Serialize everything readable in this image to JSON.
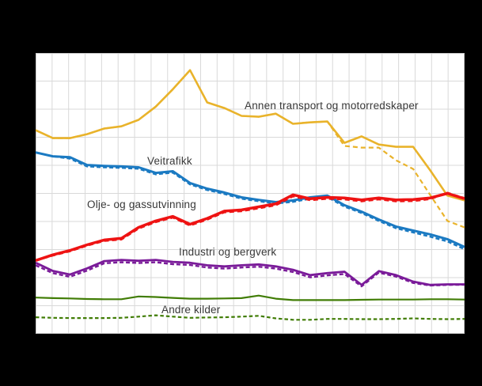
{
  "page": {
    "background": "#000000"
  },
  "plot": {
    "background": "#ffffff",
    "grid_color": "#d9d9d9",
    "border_color": "#c9c9c9",
    "v_gridline_count": 27,
    "h_gridline_count": 11
  },
  "labels": {
    "annen_transport": {
      "text": "Annen transport og motorredskaper"
    },
    "veitrafikk": {
      "text": "Veitrafikk"
    },
    "olje_gass": {
      "text": "Olje- og gassutvinning"
    },
    "industri": {
      "text": "Industri og bergverk"
    },
    "andre_kilder": {
      "text": "Andre kilder"
    }
  },
  "chart_data": {
    "type": "line",
    "title": "",
    "xlabel": "",
    "ylabel": "",
    "x_axis": {
      "n_points": 26,
      "tick_labels_visible": false
    },
    "y_axis": {
      "ylim": [
        0,
        100
      ],
      "gridline_step": 10,
      "tick_labels_visible": false
    },
    "grid": true,
    "legend_position": "none (labels drawn inside plot)",
    "note": "Axis tick labels are not legible in the source image (black text on black background); y-values are estimated on a 0-100 scale where each horizontal gridline = 10 units. Each source has a solid and a dashed variant.",
    "series": [
      {
        "name": "Annen transport og motorredskaper",
        "variant": "solid",
        "color": "#e9b32b",
        "width": 2.6,
        "dash": null,
        "values": [
          72.5,
          69.7,
          69.7,
          71.1,
          73.1,
          73.9,
          76.2,
          80.9,
          87.1,
          93.9,
          82.4,
          80.4,
          77.6,
          77.3,
          78.4,
          74.8,
          75.3,
          75.6,
          68.0,
          70.3,
          67.4,
          66.6,
          66.6,
          58.2,
          49.2,
          47.5
        ]
      },
      {
        "name": "Annen transport og motorredskaper",
        "variant": "dashed",
        "color": "#e9b32b",
        "width": 2.2,
        "dash": "6 4",
        "values": [
          72.5,
          69.7,
          69.7,
          71.1,
          73.1,
          73.9,
          76.2,
          80.9,
          87.1,
          93.9,
          82.4,
          80.4,
          77.6,
          77.3,
          78.4,
          74.8,
          75.3,
          75.6,
          66.9,
          66.3,
          66.3,
          61.8,
          58.7,
          49.4,
          40.2,
          37.9
        ]
      },
      {
        "name": "Andre kilder",
        "variant": "solid",
        "color": "#417d06",
        "width": 2.2,
        "dash": null,
        "values": [
          12.9,
          12.7,
          12.6,
          12.4,
          12.3,
          12.3,
          13.3,
          13.1,
          12.8,
          12.5,
          12.5,
          12.6,
          12.7,
          13.6,
          12.5,
          12.0,
          12.0,
          12.0,
          12.0,
          12.1,
          12.2,
          12.2,
          12.2,
          12.3,
          12.3,
          12.2
        ]
      },
      {
        "name": "Andre kilder",
        "variant": "dashed",
        "color": "#417d06",
        "width": 2.2,
        "dash": "4.5 3",
        "values": [
          5.9,
          5.7,
          5.6,
          5.6,
          5.6,
          5.7,
          6.1,
          6.6,
          6.1,
          5.7,
          5.8,
          5.9,
          6.1,
          6.4,
          5.5,
          5.0,
          5.0,
          5.3,
          5.3,
          5.2,
          5.2,
          5.3,
          5.5,
          5.3,
          5.2,
          5.3
        ]
      },
      {
        "name": "Industri og bergverk",
        "variant": "solid",
        "color": "#7a1b99",
        "width": 2.8,
        "dash": null,
        "values": [
          25.3,
          22.4,
          21.1,
          23.3,
          25.9,
          26.3,
          26.0,
          26.3,
          25.6,
          25.3,
          24.4,
          24.0,
          24.4,
          24.7,
          24.0,
          22.8,
          20.9,
          21.6,
          22.1,
          17.4,
          22.3,
          20.9,
          18.6,
          17.4,
          17.6,
          17.6
        ]
      },
      {
        "name": "Industri og bergverk",
        "variant": "dashed",
        "color": "#7a1b99",
        "width": 2.4,
        "dash": "5 3",
        "values": [
          24.4,
          21.6,
          20.3,
          22.5,
          25.1,
          25.5,
          25.2,
          25.5,
          24.8,
          24.5,
          23.6,
          23.2,
          23.6,
          23.9,
          23.2,
          22.0,
          20.1,
          20.8,
          21.3,
          16.9,
          21.8,
          20.4,
          18.1,
          17.2,
          17.4,
          17.5
        ]
      },
      {
        "name": "Veitrafikk",
        "variant": "solid",
        "color": "#1b7ac2",
        "width": 3.0,
        "dash": null,
        "values": [
          64.6,
          63.2,
          62.9,
          60.1,
          59.8,
          59.6,
          59.3,
          57.3,
          57.9,
          53.7,
          51.7,
          50.3,
          48.6,
          47.7,
          46.9,
          47.5,
          48.6,
          49.2,
          45.8,
          43.5,
          40.7,
          38.2,
          36.8,
          35.4,
          33.7,
          30.9
        ]
      },
      {
        "name": "Veitrafikk",
        "variant": "dashed",
        "color": "#1b7ac2",
        "width": 2.4,
        "dash": "5 3",
        "values": [
          64.6,
          63.2,
          62.4,
          59.6,
          59.3,
          59.1,
          58.8,
          56.8,
          57.4,
          53.2,
          51.2,
          49.8,
          48.1,
          47.2,
          46.4,
          47.0,
          48.1,
          48.7,
          45.3,
          43.0,
          40.2,
          37.6,
          36.1,
          34.6,
          32.9,
          30.1
        ]
      },
      {
        "name": "Olje- og gassutvinning",
        "variant": "solid",
        "color": "#ee1313",
        "width": 3.5,
        "dash": null,
        "values": [
          26.1,
          28.1,
          29.7,
          31.7,
          33.4,
          34.0,
          37.9,
          40.2,
          41.8,
          39.0,
          41.1,
          43.7,
          44.1,
          45.2,
          46.3,
          49.5,
          48.1,
          48.6,
          48.4,
          47.7,
          48.4,
          47.7,
          47.8,
          48.4,
          50.0,
          48.1
        ]
      },
      {
        "name": "Olje- og gassutvinning",
        "variant": "dashed",
        "color": "#ee1313",
        "width": 2.6,
        "dash": "6 4",
        "values": [
          26.1,
          27.9,
          29.4,
          31.4,
          33.1,
          33.6,
          37.5,
          39.8,
          41.4,
          38.6,
          40.7,
          43.3,
          43.7,
          44.7,
          45.8,
          49.0,
          47.6,
          48.1,
          47.9,
          47.2,
          47.9,
          47.2,
          47.3,
          48.0,
          50.2,
          48.3
        ]
      }
    ]
  }
}
